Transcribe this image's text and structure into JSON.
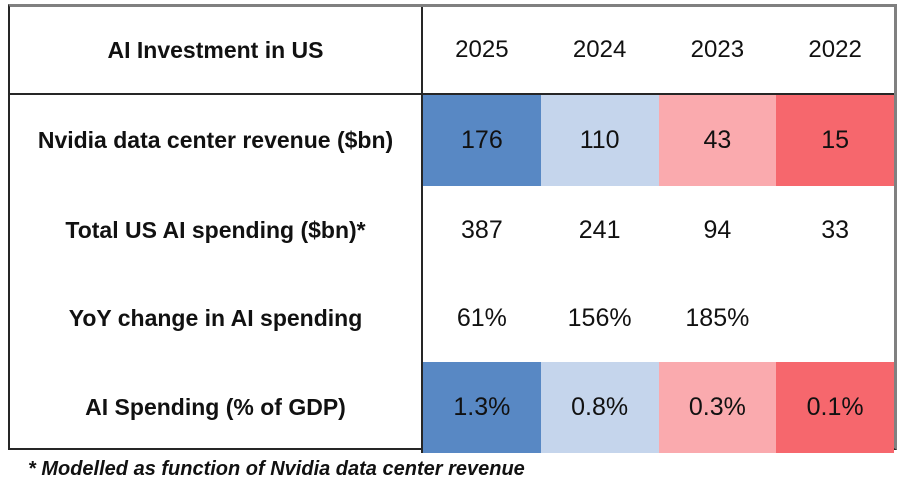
{
  "chart_data": {
    "type": "table",
    "title": "AI Investment in US",
    "columns": [
      "2025",
      "2024",
      "2023",
      "2022"
    ],
    "rows": [
      {
        "label": "Nvidia data center revenue ($bn)",
        "values": [
          "176",
          "110",
          "43",
          "15"
        ],
        "colored": true
      },
      {
        "label": "Total US AI spending ($bn)*",
        "values": [
          "387",
          "241",
          "94",
          "33"
        ],
        "colored": false
      },
      {
        "label": "YoY change in AI spending",
        "values": [
          "61%",
          "156%",
          "185%",
          null
        ],
        "colored": false
      },
      {
        "label": "AI Spending (% of GDP)",
        "values": [
          "1.3%",
          "0.8%",
          "0.3%",
          "0.1%"
        ],
        "colored": true
      }
    ],
    "cell_colors": [
      "#5888C4",
      "#C5D5EC",
      "#FAAAAE",
      "#F6676D"
    ],
    "colored_row_labels": [
      "Nvidia data center revenue ($bn)",
      "AI Spending (% of GDP)"
    ],
    "footnote": "* Modelled as function of Nvidia data center revenue",
    "layout": {
      "grid": "on-outer-borders-only",
      "legend": "none",
      "color_scale_note": "blue = recent years, red = older years"
    }
  }
}
